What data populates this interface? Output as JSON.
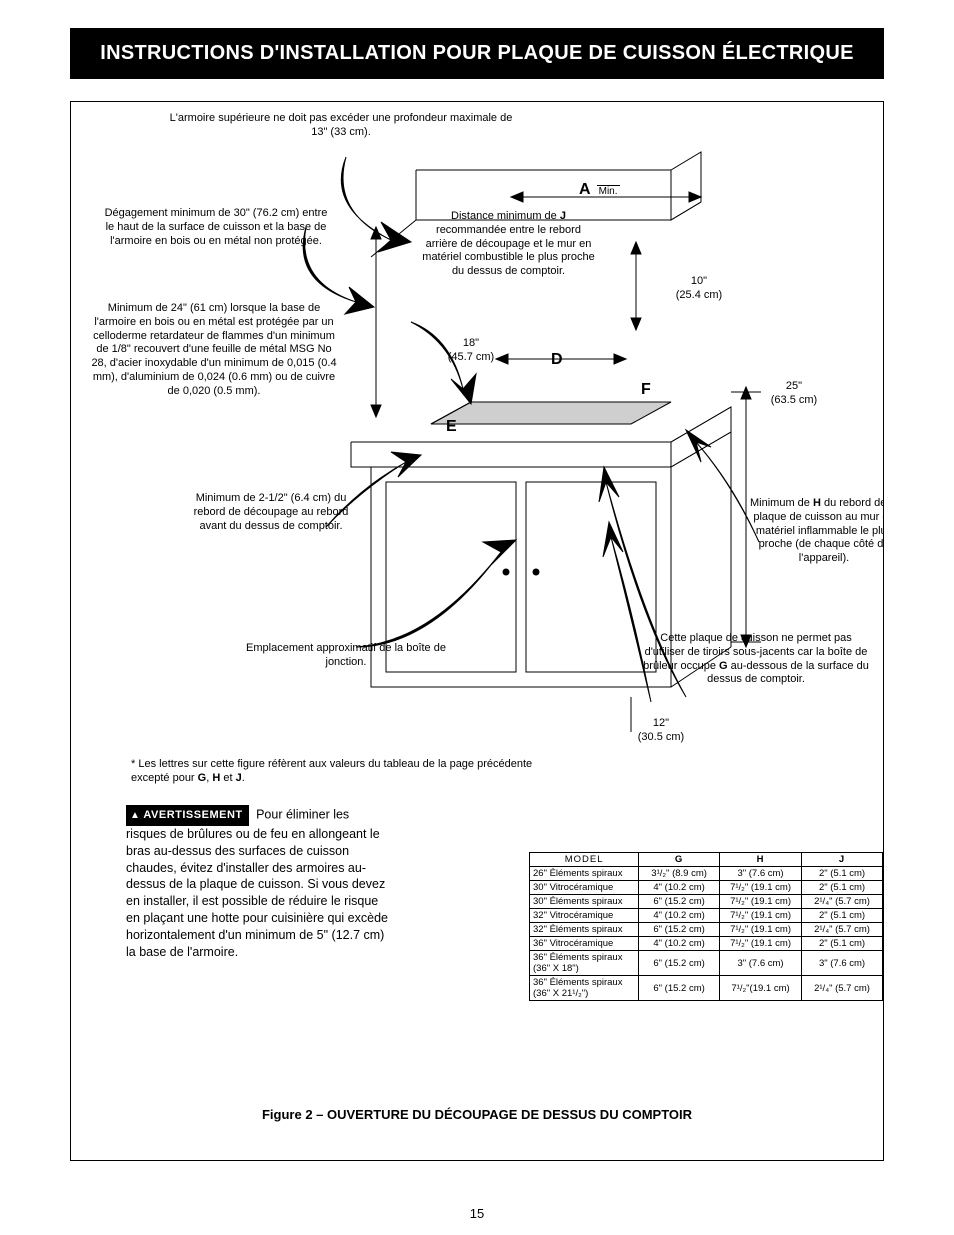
{
  "title": "INSTRUCTIONS D'INSTALLATION POUR PLAQUE DE CUISSON ÉLECTRIQUE",
  "page_number": "15",
  "callouts": {
    "c1": "L'armoire supérieure ne doit pas excéder une profondeur maximale de 13\" (33 cm).",
    "c2": "Dégagement minimum de 30\" (76.2 cm) entre le haut de la surface de cuisson et la base de l'armoire en bois ou en métal non protégée.",
    "c3": "Minimum de 24\" (61 cm) lorsque la base de l'armoire en bois ou en métal est protégée par un celloderme retardateur de flammes d'un minimum de 1/8\" recouvert d'une feuille de métal MSG No 28, d'acier inoxydable d'un minimum de 0,015 (0.4 mm), d'aluminium de 0,024 (0.6 mm) ou de cuivre de 0,020 (0.5 mm).",
    "c4": "Minimum de 2-1/2\" (6.4 cm) du rebord de découpage au rebord avant du dessus de comptoir.",
    "c5": "Emplacement approximatif de la boîte de jonction.",
    "c6_html": "Distance minimum de <b>J</b> recommandée entre le rebord arrière de découpage et le mur en matériel combus­tible le plus proche du dessus de comptoir.",
    "c7_html": "Minimum de <b>H</b> du rebord de la plaque de cuisson au mur en matériel inflam­mable le plus proche (de chaque côté de l'appareil).",
    "c8_html": "Cette plaque de cuisson ne permet pas d'utiliser de tiroirs sous-jacents car la boîte de brûleur occupe <b>G</b> au-dessous de la surface du dessus de comptoir."
  },
  "dims": {
    "A": "A",
    "A_sub": "Min.",
    "D": "D",
    "E": "E",
    "F": "F",
    "d18": "18\"",
    "d18m": "(45.7 cm)",
    "d10": "10\"",
    "d10m": "(25.4 cm)",
    "d25": "25\"",
    "d25m": "(63.5 cm)",
    "d12": "12\"",
    "d12m": "(30.5 cm)"
  },
  "footnote_html": "* Les lettres sur cette figure réfèrent aux valeurs du tableau de la page précédente excepté pour <b>G</b>, <b>H</b> et <b>J</b>.",
  "warning": {
    "label": "AVERTISSEMENT",
    "text": "Pour éliminer les risques de brûlures ou de feu en allongeant le bras au-dessus des surfaces de cuisson chaudes, évitez d'installer des armoires au-dessus de la plaque de cuisson.  Si vous devez en installer, il est possible de réduire le risque en plaçant une hotte pour cuisinière qui excède horizontalement d'un minimum de 5\" (12.7 cm) la base de l'armoire."
  },
  "table": {
    "headers": [
      "MODEL",
      "G",
      "H",
      "J"
    ],
    "rows": [
      [
        "26\" Éléments spiraux",
        "3¹/₂\" (8.9 cm)",
        "3\" (7.6 cm)",
        "2\" (5.1 cm)"
      ],
      [
        "30\" Vitrocéramique",
        "4\" (10.2 cm)",
        "7¹/₂\" (19.1 cm)",
        "2\" (5.1 cm)"
      ],
      [
        "30\" Éléments spiraux",
        "6\" (15.2 cm)",
        "7¹/₂\" (19.1 cm)",
        "2¹/₄\" (5.7 cm)"
      ],
      [
        "32\" Vitrocéramique",
        "4\" (10.2 cm)",
        "7¹/₂\" (19.1 cm)",
        "2\" (5.1 cm)"
      ],
      [
        "32\" Éléments spiraux",
        "6\" (15.2 cm)",
        "7¹/₂\" (19.1 cm)",
        "2¹/₄\" (5.7 cm)"
      ],
      [
        "36\" Vitrocéramique",
        "4\" (10.2 cm)",
        "7¹/₂\" (19.1 cm)",
        "2\" (5.1 cm)"
      ],
      [
        "36\" Éléments spiraux\n(36\" X 18\")",
        "6\" (15.2 cm)",
        "3\" (7.6 cm)",
        "3\" (7.6 cm)"
      ],
      [
        "36\" Éléments spiraux\n(36\" X 21¹/₂\")",
        "6\" (15.2 cm)",
        "7¹/₂\"(19.1 cm)",
        "2¹/₄\" (5.7 cm)"
      ]
    ]
  },
  "figure_caption": "Figure 2 – OUVERTURE DU DÉCOUPAGE DE DESSUS DU COMPTOIR"
}
